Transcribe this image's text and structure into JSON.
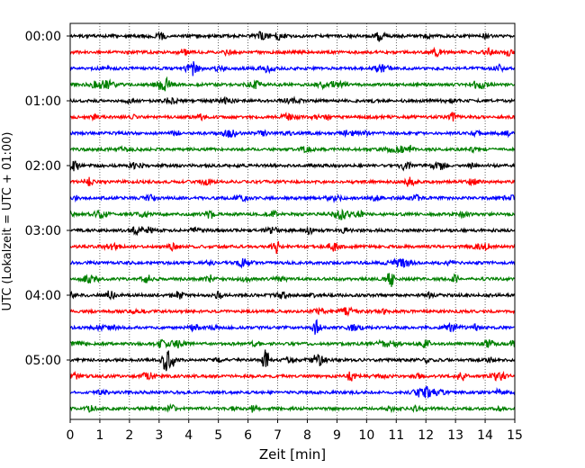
{
  "chart_data": {
    "type": "line",
    "title": "",
    "xlabel": "Zeit  [min]",
    "ylabel": "UTC (Lokalzeit = UTC + 01:00)",
    "xlim": [
      0,
      15
    ],
    "x_ticks": [
      0,
      1,
      2,
      3,
      4,
      5,
      6,
      7,
      8,
      9,
      10,
      11,
      12,
      13,
      14,
      15
    ],
    "y_tick_labels": [
      "00:00",
      "01:00",
      "02:00",
      "03:00",
      "04:00",
      "05:00"
    ],
    "y_tick_traces": [
      0,
      4,
      8,
      12,
      16,
      20
    ],
    "trace_interval_min": 15,
    "trace_count": 24,
    "trace_colors": [
      "#000000",
      "#ff0000",
      "#0000ff",
      "#008000"
    ],
    "grid": "vertical dotted at each minute",
    "notable_events": [
      {
        "trace": 20,
        "x": [
          3.2,
          3.4,
          6.6
        ]
      },
      {
        "trace": 18,
        "x": [
          8.3
        ]
      },
      {
        "trace": 15,
        "x": [
          10.8
        ]
      }
    ]
  }
}
